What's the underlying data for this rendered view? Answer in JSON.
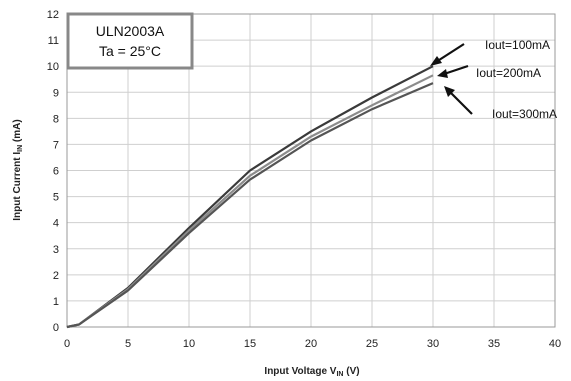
{
  "chart_data": {
    "type": "line",
    "xlabel": "Input Voltage V",
    "xlabel_sub": "IN",
    "xlabel_unit": " (V)",
    "ylabel": "Input Current  I",
    "ylabel_sub": "IN",
    "ylabel_unit": " (mA)",
    "xlim": [
      0,
      40
    ],
    "ylim": [
      0,
      12
    ],
    "xticks": [
      0,
      5,
      10,
      15,
      20,
      25,
      30,
      35,
      40
    ],
    "yticks": [
      0,
      1,
      2,
      3,
      4,
      5,
      6,
      7,
      8,
      9,
      10,
      11,
      12
    ],
    "grid": true,
    "info_box": {
      "line1": "ULN2003A",
      "line2": "Ta = 25°C"
    },
    "series": [
      {
        "name": "Iout=100mA",
        "color": "#3a3a3a",
        "x": [
          0,
          1,
          5,
          10,
          15,
          20,
          25,
          30
        ],
        "y": [
          0,
          0.1,
          1.5,
          3.8,
          6.0,
          7.5,
          8.8,
          10.0
        ]
      },
      {
        "name": "Iout=200mA",
        "color": "#8c8c8c",
        "x": [
          0,
          1,
          5,
          10,
          15,
          20,
          25,
          30
        ],
        "y": [
          0,
          0.1,
          1.45,
          3.7,
          5.8,
          7.3,
          8.5,
          9.65
        ]
      },
      {
        "name": "Iout=300mA",
        "color": "#555555",
        "x": [
          0,
          1,
          5,
          10,
          15,
          20,
          25,
          30
        ],
        "y": [
          0,
          0.1,
          1.4,
          3.6,
          5.65,
          7.15,
          8.35,
          9.35
        ]
      }
    ],
    "annotations": [
      {
        "text": "Iout=100mA"
      },
      {
        "text": "Iout=200mA"
      },
      {
        "text": "Iout=300mA"
      }
    ]
  }
}
